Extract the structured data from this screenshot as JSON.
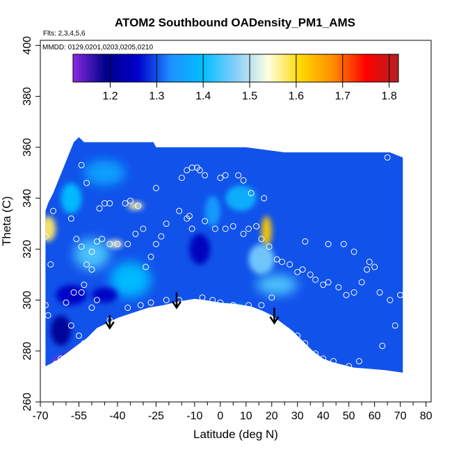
{
  "chart_data": {
    "type": "heatmap",
    "title": "ATOM2 Southbound OADensity_PM1_AMS",
    "subtitle": "Flts: 2,3,4,5,6",
    "annotation": "MMDD: 0129,0201,0203,0205,0210",
    "xlabel": "Latitude (deg N)",
    "ylabel": "Theta (C)",
    "xlim": [
      -70,
      82
    ],
    "ylim": [
      260,
      402
    ],
    "x_ticks": [
      -70,
      -55,
      -40,
      -25,
      -10,
      0,
      10,
      20,
      30,
      40,
      50,
      60,
      70,
      80
    ],
    "x_tick_labels": [
      "-70",
      "-55",
      "-40",
      "-25",
      "-10",
      "0",
      "10",
      "20",
      "30",
      "40",
      "50",
      "60",
      "70",
      "80"
    ],
    "x_minor_ticks": [
      -65,
      -60,
      -50,
      -45,
      -35,
      -30,
      -20,
      -15,
      -5,
      5,
      15,
      25,
      35,
      45,
      55,
      65,
      75
    ],
    "y_ticks": [
      260,
      280,
      300,
      320,
      340,
      360,
      380,
      400
    ],
    "y_tick_labels": [
      "260",
      "280",
      "300",
      "320",
      "340",
      "360",
      "380",
      "400"
    ],
    "colorbar": {
      "min": 1.12,
      "max": 1.82,
      "ticks": [
        1.2,
        1.3,
        1.4,
        1.5,
        1.6,
        1.7,
        1.8
      ],
      "tick_labels": [
        "1.2",
        "1.3",
        "1.4",
        "1.5",
        "1.6",
        "1.7",
        "1.8"
      ],
      "colors": [
        "#8a2be2",
        "#00008b",
        "#0000cd",
        "#1e90ff",
        "#00bfff",
        "#87cefa",
        "#ffffe0",
        "#ffd700",
        "#ff8c00",
        "#ff0000",
        "#b22222"
      ]
    },
    "background_value": 1.3,
    "field_bounds": {
      "top": [
        [
          -68,
          335
        ],
        [
          -67,
          338
        ],
        [
          -65,
          342
        ],
        [
          -63,
          347
        ],
        [
          -61,
          352
        ],
        [
          -59,
          357
        ],
        [
          -57,
          362
        ],
        [
          -55,
          364
        ],
        [
          -53,
          362
        ],
        [
          -30,
          362
        ],
        [
          -26,
          362
        ],
        [
          -25,
          360
        ],
        [
          -5,
          360
        ],
        [
          10,
          360
        ],
        [
          25,
          358
        ],
        [
          50,
          358
        ],
        [
          66,
          358
        ],
        [
          71,
          356
        ]
      ],
      "bottom": [
        [
          -68,
          274
        ],
        [
          -64,
          276
        ],
        [
          -60,
          279
        ],
        [
          -56,
          282
        ],
        [
          -52,
          285
        ],
        [
          -48,
          289
        ],
        [
          -44,
          291
        ],
        [
          -40,
          293
        ],
        [
          -34,
          295
        ],
        [
          -28,
          297
        ],
        [
          -22,
          298
        ],
        [
          -16,
          299.5
        ],
        [
          -10,
          300.5
        ],
        [
          -6,
          300
        ],
        [
          0,
          299
        ],
        [
          6,
          298.5
        ],
        [
          12,
          297.5
        ],
        [
          16,
          296
        ],
        [
          20,
          294
        ],
        [
          24,
          291
        ],
        [
          28,
          288
        ],
        [
          32,
          284
        ],
        [
          36,
          280
        ],
        [
          40,
          277
        ],
        [
          44,
          275.5
        ],
        [
          48,
          274.5
        ],
        [
          52,
          273.5
        ],
        [
          58,
          273
        ],
        [
          64,
          272.5
        ],
        [
          71,
          271.5
        ]
      ]
    },
    "anomalies": [
      {
        "lat": -67,
        "theta": 328,
        "value": 1.58,
        "rx": 3,
        "ry": 5
      },
      {
        "lat": -33,
        "theta": 337,
        "value": 1.56,
        "rx": 3,
        "ry": 1.5
      },
      {
        "lat": -41,
        "theta": 322,
        "value": 1.55,
        "rx": 3,
        "ry": 1.5
      },
      {
        "lat": 18,
        "theta": 327,
        "value": 1.62,
        "rx": 2,
        "ry": 6
      },
      {
        "lat": 16,
        "theta": 316,
        "value": 1.46,
        "rx": 5,
        "ry": 6
      },
      {
        "lat": 22,
        "theta": 306,
        "value": 1.44,
        "rx": 8,
        "ry": 4
      },
      {
        "lat": -50,
        "theta": 318,
        "value": 1.44,
        "rx": 7,
        "ry": 6
      },
      {
        "lat": -35,
        "theta": 308,
        "value": 1.4,
        "rx": 8,
        "ry": 7
      },
      {
        "lat": -58,
        "theta": 340,
        "value": 1.4,
        "rx": 4,
        "ry": 6
      },
      {
        "lat": 8,
        "theta": 340,
        "value": 1.38,
        "rx": 6,
        "ry": 5
      },
      {
        "lat": -45,
        "theta": 350,
        "value": 1.36,
        "rx": 8,
        "ry": 5
      },
      {
        "lat": -3,
        "theta": 335,
        "value": 1.35,
        "rx": 3,
        "ry": 6
      },
      {
        "lat": 6,
        "theta": 295,
        "value": 1.38,
        "rx": 6,
        "ry": 3
      },
      {
        "lat": -62,
        "theta": 288,
        "value": 1.2,
        "rx": 4,
        "ry": 6
      },
      {
        "lat": -58,
        "theta": 277,
        "value": 1.14,
        "rx": 3,
        "ry": 3
      },
      {
        "lat": -63,
        "theta": 276,
        "value": 1.12,
        "rx": 2,
        "ry": 2
      },
      {
        "lat": -45,
        "theta": 302,
        "value": 1.25,
        "rx": 5,
        "ry": 3
      },
      {
        "lat": -8,
        "theta": 320,
        "value": 1.24,
        "rx": 4,
        "ry": 6
      },
      {
        "lat": -58,
        "theta": 302,
        "value": 1.25,
        "rx": 6,
        "ry": 4
      }
    ],
    "observations": [
      [
        -65,
        335
      ],
      [
        -68,
        325
      ],
      [
        -66,
        314
      ],
      [
        -68,
        298
      ],
      [
        -67,
        294
      ],
      [
        -54,
        353
      ],
      [
        -52,
        346
      ],
      [
        -58,
        332
      ],
      [
        -56,
        324
      ],
      [
        -54,
        321
      ],
      [
        -50,
        319
      ],
      [
        -52,
        314
      ],
      [
        -50,
        312
      ],
      [
        -53,
        306
      ],
      [
        -54,
        303
      ],
      [
        -57,
        303
      ],
      [
        -60,
        299
      ],
      [
        -58,
        290
      ],
      [
        -55,
        286
      ],
      [
        -53,
        283
      ],
      [
        -50,
        297
      ],
      [
        -48,
        300
      ],
      [
        -43,
        292
      ],
      [
        -39,
        292
      ],
      [
        -36,
        297
      ],
      [
        -31,
        298
      ],
      [
        -29,
        313
      ],
      [
        -27,
        317
      ],
      [
        -25,
        322
      ],
      [
        -47,
        336
      ],
      [
        -45,
        338
      ],
      [
        -43,
        338
      ],
      [
        -37,
        338
      ],
      [
        -35,
        339
      ],
      [
        -32,
        337
      ],
      [
        -30,
        328
      ],
      [
        -33,
        326
      ],
      [
        -36,
        322
      ],
      [
        -40,
        322
      ],
      [
        -43,
        322
      ],
      [
        -46,
        324
      ],
      [
        -48,
        323
      ],
      [
        -23,
        325
      ],
      [
        -21,
        330
      ],
      [
        -16,
        335
      ],
      [
        -13,
        351
      ],
      [
        -11,
        352
      ],
      [
        -9,
        352
      ],
      [
        -8,
        351
      ],
      [
        -15,
        348
      ],
      [
        -25,
        344
      ],
      [
        -6,
        349
      ],
      [
        0,
        348
      ],
      [
        2,
        349
      ],
      [
        7,
        349
      ],
      [
        9,
        347
      ],
      [
        12,
        342
      ],
      [
        17,
        340
      ],
      [
        -12,
        333
      ],
      [
        -13,
        332
      ],
      [
        -11,
        328
      ],
      [
        -6,
        331
      ],
      [
        -2,
        328
      ],
      [
        2,
        328
      ],
      [
        5,
        329
      ],
      [
        9,
        326
      ],
      [
        11,
        328
      ],
      [
        14,
        329
      ],
      [
        16,
        324
      ],
      [
        19,
        321
      ],
      [
        22,
        316
      ],
      [
        24,
        315
      ],
      [
        27,
        314
      ],
      [
        30,
        311
      ],
      [
        32,
        312
      ],
      [
        35,
        310
      ],
      [
        37,
        308
      ],
      [
        40,
        306
      ],
      [
        42,
        307
      ],
      [
        46,
        305
      ],
      [
        49,
        302
      ],
      [
        52,
        303
      ],
      [
        55,
        307
      ],
      [
        58,
        315
      ],
      [
        60,
        313
      ],
      [
        62,
        303
      ],
      [
        66,
        300
      ],
      [
        70,
        302
      ],
      [
        33,
        323
      ],
      [
        42,
        322
      ],
      [
        48,
        322
      ],
      [
        52,
        319
      ],
      [
        57,
        312
      ],
      [
        20,
        301
      ],
      [
        16,
        298
      ],
      [
        11,
        298
      ],
      [
        5,
        298
      ],
      [
        0,
        299
      ],
      [
        -3,
        300
      ],
      [
        -7,
        301
      ],
      [
        -16,
        300
      ],
      [
        -21,
        300
      ],
      [
        -27,
        299
      ],
      [
        22,
        290
      ],
      [
        26,
        288
      ],
      [
        30,
        286
      ],
      [
        33,
        283
      ],
      [
        37,
        279
      ],
      [
        40,
        277
      ],
      [
        44,
        276
      ],
      [
        50,
        274
      ],
      [
        54,
        276
      ],
      [
        63,
        282
      ],
      [
        68,
        290
      ],
      [
        65,
        356
      ],
      [
        -58,
        276
      ],
      [
        -62,
        277
      ],
      [
        -64,
        275
      ]
    ],
    "arrows": [
      {
        "lat": -43,
        "theta": 289,
        "length": 5
      },
      {
        "lat": -17,
        "theta": 297,
        "length": 6
      },
      {
        "lat": 21,
        "theta": 291,
        "length": 6
      }
    ]
  }
}
